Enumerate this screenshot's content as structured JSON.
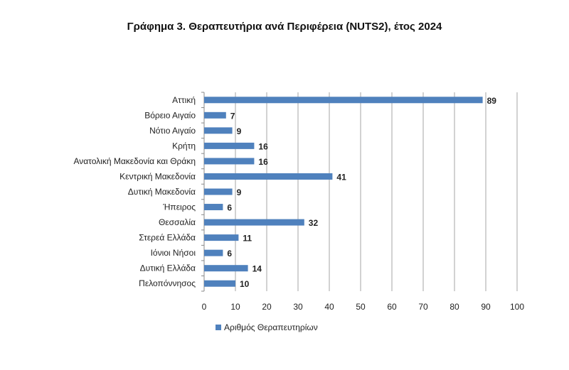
{
  "chart_data": {
    "type": "bar",
    "orientation": "horizontal",
    "title": "Γράφημα 3. Θεραπευτήρια ανά Περιφέρεια (NUTS2), έτος 2024",
    "categories": [
      "Αττική",
      "Βόρειο Αιγαίο",
      "Νότιο Αιγαίο",
      "Κρήτη",
      "Ανατολική Μακεδονία και Θράκη",
      "Κεντρική Μακεδονία",
      "Δυτική Μακεδονία",
      "Ήπειρος",
      "Θεσσαλία",
      "Στερεά Ελλάδα",
      "Ιόνιοι Νήσοι",
      "Δυτική Ελλάδα",
      "Πελοπόννησος"
    ],
    "series": [
      {
        "name": "Αριθμός Θεραπευτηρίων",
        "values": [
          89,
          7,
          9,
          16,
          16,
          41,
          9,
          6,
          32,
          11,
          6,
          14,
          10
        ],
        "color": "#4f81bd"
      }
    ],
    "xlim": [
      0,
      100
    ],
    "xticks": [
      0,
      10,
      20,
      30,
      40,
      50,
      60,
      70,
      80,
      90,
      100
    ],
    "grid": "vertical",
    "gridcolor": "#a6a6a6",
    "data_labels": true,
    "legend": "bottom"
  }
}
